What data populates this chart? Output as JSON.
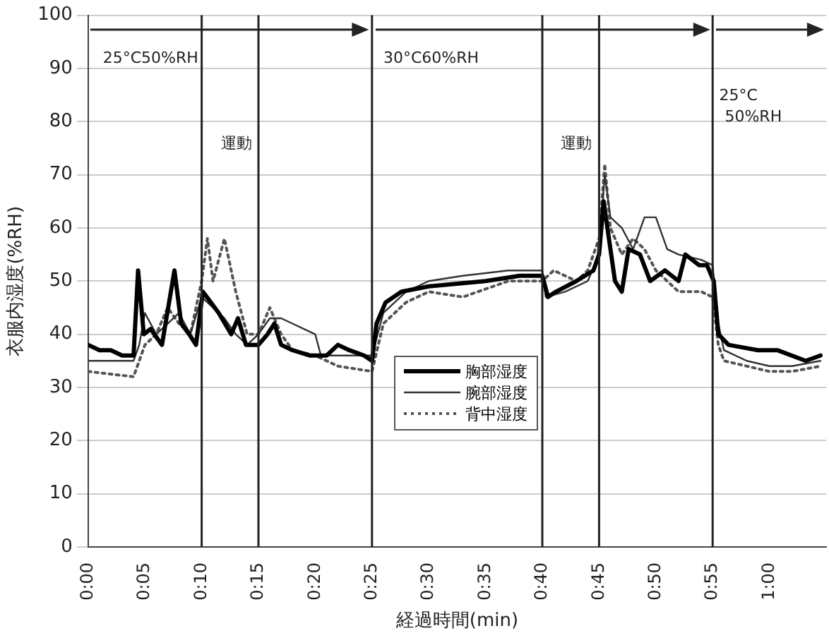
{
  "chart_data": {
    "type": "line",
    "xlabel": "経過時間(min)",
    "ylabel": "衣服内湿度(%RH)",
    "xlim": [
      0,
      65
    ],
    "xticks": [
      {
        "value": 0,
        "label": "0:00"
      },
      {
        "value": 5,
        "label": "0:05"
      },
      {
        "value": 10,
        "label": "0:10"
      },
      {
        "value": 15,
        "label": "0:15"
      },
      {
        "value": 20,
        "label": "0:20"
      },
      {
        "value": 25,
        "label": "0:25"
      },
      {
        "value": 30,
        "label": "0:30"
      },
      {
        "value": 35,
        "label": "0:35"
      },
      {
        "value": 40,
        "label": "0:40"
      },
      {
        "value": 45,
        "label": "0:45"
      },
      {
        "value": 50,
        "label": "0:50"
      },
      {
        "value": 55,
        "label": "0:55"
      },
      {
        "value": 60,
        "label": "1:00"
      }
    ],
    "ylim": [
      0,
      100
    ],
    "yticks": [
      0,
      10,
      20,
      30,
      40,
      50,
      60,
      70,
      80,
      90,
      100
    ],
    "grid": "y",
    "legend": "bottom",
    "marker": "none",
    "series": [
      {
        "name": "胸部湿度",
        "color": "#000000",
        "line_style": "solid",
        "x": [
          0,
          1,
          2,
          3,
          4,
          4.4,
          4.9,
          5.5,
          6.5,
          7.6,
          8.2,
          8.9,
          9.5,
          10.1,
          10.8,
          11.5,
          12.6,
          13.2,
          13.9,
          15,
          15.8,
          16.4,
          17,
          18,
          19.5,
          21,
          22,
          23,
          24.3,
          25,
          25.4,
          26.2,
          27.6,
          30,
          35,
          38,
          40,
          40.5,
          41.2,
          43,
          44.5,
          45,
          45.4,
          46.4,
          47,
          47.6,
          48.6,
          49.5,
          50.8,
          52,
          52.6,
          53.8,
          54.5,
          55.1,
          55.5,
          56.4,
          59,
          60.7,
          63.2,
          64.5
        ],
        "values": [
          38,
          37,
          37,
          36,
          36,
          52,
          40,
          41,
          38,
          52,
          42,
          40,
          38,
          48,
          46,
          44,
          40,
          43,
          38,
          38,
          40,
          42,
          38,
          37,
          36,
          36,
          38,
          37,
          36,
          35,
          42,
          46,
          48,
          49,
          50,
          51,
          51,
          47,
          48,
          50,
          52,
          55,
          65,
          50,
          48,
          56,
          55,
          50,
          52,
          50,
          55,
          53,
          53,
          50,
          40,
          38,
          37,
          37,
          35,
          36
        ]
      },
      {
        "name": "腕部湿度",
        "color": "#333333",
        "line_style": "solid",
        "x": [
          0,
          4,
          4.5,
          5,
          6,
          7,
          8,
          9,
          10,
          11,
          12,
          13,
          14,
          15,
          16,
          17,
          18,
          19,
          20,
          20.5,
          22,
          25,
          26,
          28,
          30,
          33,
          37,
          40,
          40.3,
          42,
          44,
          45,
          45.5,
          46,
          47,
          48,
          49,
          50,
          51,
          52,
          54,
          55,
          55.5,
          56,
          58,
          60,
          62,
          64.5
        ],
        "values": [
          35,
          35,
          38,
          44,
          40,
          42,
          44,
          40,
          47,
          45,
          43,
          40,
          38,
          40,
          43,
          43,
          42,
          41,
          40,
          36,
          36,
          36,
          44,
          48,
          50,
          51,
          52,
          52,
          47,
          48,
          50,
          55,
          70,
          62,
          60,
          56,
          62,
          62,
          56,
          55,
          54,
          53,
          42,
          37,
          35,
          34,
          34,
          35
        ]
      },
      {
        "name": "背中湿度",
        "color": "#555555",
        "line_style": "dotted",
        "x": [
          0,
          4,
          5,
          6,
          7,
          8,
          9,
          10,
          10.5,
          11,
          12,
          13,
          14,
          15,
          16,
          17,
          18,
          20,
          22,
          25,
          26,
          28,
          30,
          33,
          37,
          40,
          41,
          43,
          44,
          45,
          45.5,
          46,
          47,
          48,
          49,
          50,
          52,
          54,
          55,
          55.5,
          56,
          58,
          60,
          62,
          64.5
        ],
        "values": [
          33,
          32,
          38,
          40,
          45,
          42,
          40,
          50,
          58,
          50,
          58,
          48,
          40,
          40,
          45,
          40,
          37,
          36,
          34,
          33,
          42,
          46,
          48,
          47,
          50,
          50,
          52,
          50,
          52,
          58,
          72,
          60,
          55,
          58,
          56,
          52,
          48,
          48,
          47,
          38,
          35,
          34,
          33,
          33,
          34
        ]
      }
    ],
    "ref_lines": [
      {
        "axis": "x",
        "value": 10,
        "label": null
      },
      {
        "axis": "x",
        "value": 15,
        "label": null
      },
      {
        "axis": "x",
        "value": 25,
        "label": null
      },
      {
        "axis": "x",
        "value": 40,
        "label": null
      },
      {
        "axis": "x",
        "value": 45,
        "label": null
      },
      {
        "axis": "x",
        "value": 55,
        "label": null
      }
    ],
    "annotations": [
      "25°C50%RH",
      "30°C60%RH",
      "25°C 50%RH",
      "運動",
      "運動"
    ]
  }
}
